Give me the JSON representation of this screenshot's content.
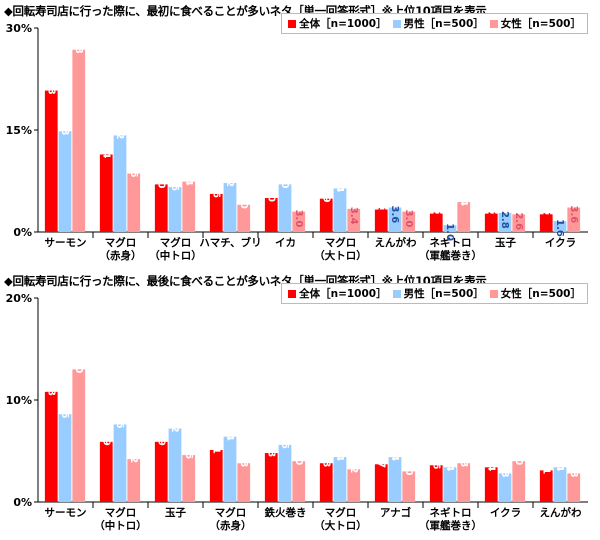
{
  "chart_data": [
    {
      "type": "bar",
      "title": "◆回転寿司店に行った際に、最初に食べることが多いネタ［単一回答形式］※上位10項目を表示",
      "ylim": [
        0,
        30
      ],
      "yticks": [
        "0%",
        "15%",
        "30%"
      ],
      "legend_position": "top-right",
      "categories": [
        "サーモン",
        "マグロ\n（赤身）",
        "マグロ\n（中トロ）",
        "ハマチ、ブリ",
        "イカ",
        "マグロ\n（大トロ）",
        "えんがわ",
        "ネギトロ\n（軍艦巻き）",
        "玉子",
        "イクラ"
      ],
      "series": [
        {
          "name": "全体［n=1000］",
          "color": "#ff0000",
          "values": [
            20.8,
            11.4,
            7.0,
            5.6,
            5.0,
            4.9,
            3.3,
            2.7,
            2.7,
            2.6
          ]
        },
        {
          "name": "男性［n=500］",
          "color": "#99ccff",
          "values": [
            14.8,
            14.2,
            6.6,
            7.2,
            7.0,
            6.4,
            3.6,
            1.0,
            2.8,
            1.6
          ]
        },
        {
          "name": "女性［n=500］",
          "color": "#ff9999",
          "values": [
            26.8,
            8.6,
            7.4,
            4.0,
            3.0,
            3.4,
            3.0,
            4.4,
            2.6,
            3.6
          ]
        }
      ]
    },
    {
      "type": "bar",
      "title": "◆回転寿司店に行った際に、最後に食べることが多いネタ［単一回答形式］※上位10項目を表示",
      "ylim": [
        0,
        20
      ],
      "yticks": [
        "0%",
        "10%",
        "20%"
      ],
      "legend_position": "top-right",
      "categories": [
        "サーモン",
        "マグロ\n（中トロ）",
        "玉子",
        "マグロ\n（赤身）",
        "鉄火巻き",
        "マグロ\n（大トロ）",
        "アナゴ",
        "ネギトロ\n（軍艦巻き）",
        "イクラ",
        "えんがわ"
      ],
      "series": [
        {
          "name": "全体［n=1000］",
          "color": "#ff0000",
          "values": [
            10.8,
            5.9,
            5.9,
            5.1,
            4.8,
            3.8,
            3.7,
            3.6,
            3.4,
            3.1
          ]
        },
        {
          "name": "男性［n=500］",
          "color": "#99ccff",
          "values": [
            8.6,
            7.6,
            7.2,
            6.4,
            5.6,
            4.4,
            4.4,
            3.4,
            2.8,
            3.4
          ]
        },
        {
          "name": "女性［n=500］",
          "color": "#ff9999",
          "values": [
            13.0,
            4.2,
            4.6,
            3.8,
            4.0,
            3.2,
            3.0,
            3.8,
            4.0,
            2.8
          ]
        }
      ]
    }
  ]
}
